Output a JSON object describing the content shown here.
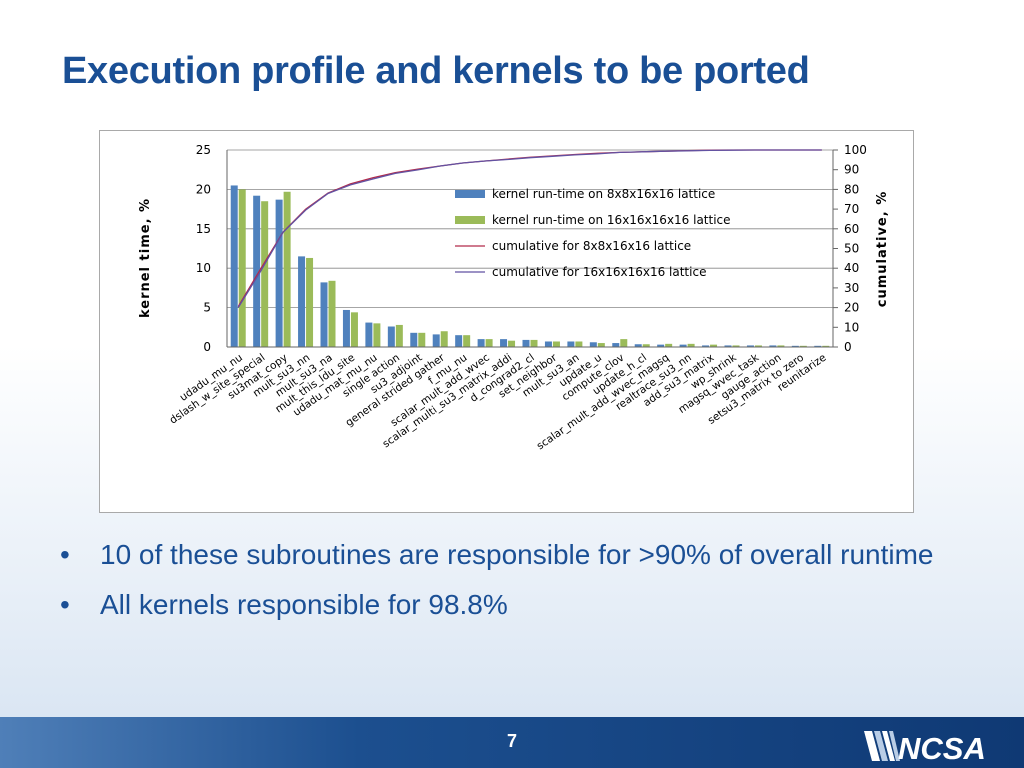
{
  "slide": {
    "title": "Execution profile and kernels to be ported",
    "bullets": [
      "10 of these subroutines are responsible for >90% of overall runtime",
      "All kernels responsible for 98.8%"
    ],
    "page_number": "7",
    "logo_text": "NCSA"
  },
  "colors": {
    "title": "#1a4f95",
    "series_small": "#4f81bd",
    "series_large": "#9bbb59",
    "cum_small": "#b22a4a",
    "cum_large": "#6252a2",
    "footer": "#1c4f8f"
  },
  "chart_data": {
    "type": "bar",
    "categories": [
      "udadu_mu_nu",
      "dslash_w_site_special",
      "su3mat_copy",
      "mult_su3_nn",
      "mult_su3_na",
      "mult_this_ldu_site",
      "udadu_mat_mu_nu",
      "single action",
      "su3_adjoint",
      "general strided gather",
      "f_mu_nu",
      "scalar_mult_add_wvec",
      "scalar_multi_su3_matrix_addi",
      "d_congrad2_cl",
      "set_neighbor",
      "mult_su3_an",
      "update_u",
      "compute_clov",
      "update_h_cl",
      "scalar_mult_add_wvec_magsq",
      "realtrace_su3_nn",
      "add_su3_matrix",
      "wp_shrink",
      "magsq_wvec_task",
      "gauge_action",
      "setsu3_matrix to zero",
      "reunitarize"
    ],
    "series": [
      {
        "name": "kernel run-time on 8x8x16x16 lattice",
        "axis": "left",
        "kind": "bar",
        "values": [
          20.5,
          19.2,
          18.7,
          11.5,
          8.2,
          4.7,
          3.1,
          2.6,
          1.8,
          1.6,
          1.5,
          1.0,
          1.0,
          0.9,
          0.7,
          0.7,
          0.6,
          0.5,
          0.35,
          0.3,
          0.3,
          0.2,
          0.2,
          0.2,
          0.2,
          0.15,
          0.15
        ]
      },
      {
        "name": "kernel run-time on 16x16x16x16 lattice",
        "axis": "left",
        "kind": "bar",
        "values": [
          20.0,
          18.5,
          19.7,
          11.3,
          8.4,
          4.4,
          3.0,
          2.8,
          1.8,
          2.0,
          1.5,
          1.0,
          0.8,
          0.9,
          0.7,
          0.7,
          0.5,
          1.0,
          0.35,
          0.4,
          0.4,
          0.3,
          0.2,
          0.2,
          0.2,
          0.15,
          0.15
        ]
      },
      {
        "name": "cumulative for 8x8x16x16 lattice",
        "axis": "right",
        "kind": "line",
        "values": [
          20.5,
          39.7,
          58.4,
          69.9,
          78.1,
          82.8,
          85.9,
          88.5,
          90.3,
          91.9,
          93.4,
          94.4,
          95.4,
          96.3,
          97.0,
          97.7,
          98.3,
          98.8,
          99.1,
          99.4,
          99.7,
          99.9,
          100,
          100,
          100,
          100,
          100
        ]
      },
      {
        "name": "cumulative for 16x16x16x16 lattice",
        "axis": "right",
        "kind": "line",
        "values": [
          20.0,
          38.5,
          58.2,
          69.5,
          77.9,
          82.3,
          85.3,
          88.1,
          89.9,
          91.9,
          93.4,
          94.4,
          95.2,
          96.1,
          96.8,
          97.5,
          98.0,
          98.8,
          99.1,
          99.4,
          99.6,
          99.8,
          99.9,
          100,
          100,
          100,
          100
        ]
      }
    ],
    "ylabel": "kernel   time, %",
    "y2label": "cumulative, %",
    "ylim": [
      0,
      25
    ],
    "y2lim": [
      0,
      100
    ],
    "yticks": [
      0,
      5,
      10,
      15,
      20,
      25
    ],
    "y2ticks": [
      0,
      10,
      20,
      30,
      40,
      50,
      60,
      70,
      80,
      90,
      100
    ],
    "grid": true,
    "legend_position": "inside-right"
  }
}
